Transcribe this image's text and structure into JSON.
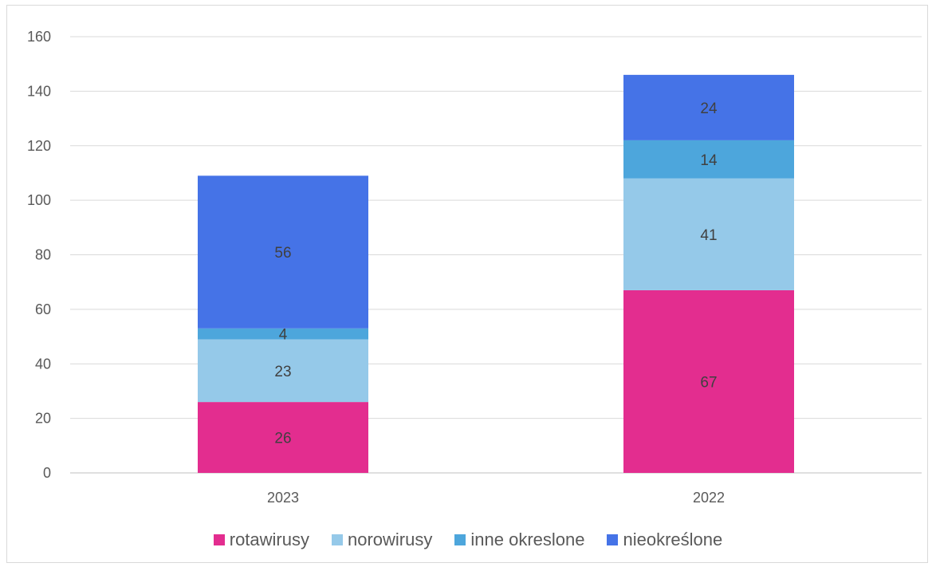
{
  "chart_data": {
    "type": "bar",
    "stacked": true,
    "categories": [
      "2023",
      "2022"
    ],
    "series": [
      {
        "name": "rotawirusy",
        "values": [
          26,
          67
        ],
        "color": "#e32d8f"
      },
      {
        "name": "norowirusy",
        "values": [
          23,
          41
        ],
        "color": "#95c9e9"
      },
      {
        "name": "inne okreslone",
        "values": [
          4,
          14
        ],
        "color": "#4da6dc"
      },
      {
        "name": "nieokreślone",
        "values": [
          56,
          24
        ],
        "color": "#4573e7"
      }
    ],
    "ylim": [
      0,
      160
    ],
    "yticks": [
      0,
      20,
      40,
      60,
      80,
      100,
      120,
      140,
      160
    ],
    "grid": true,
    "legend": "bottom"
  }
}
